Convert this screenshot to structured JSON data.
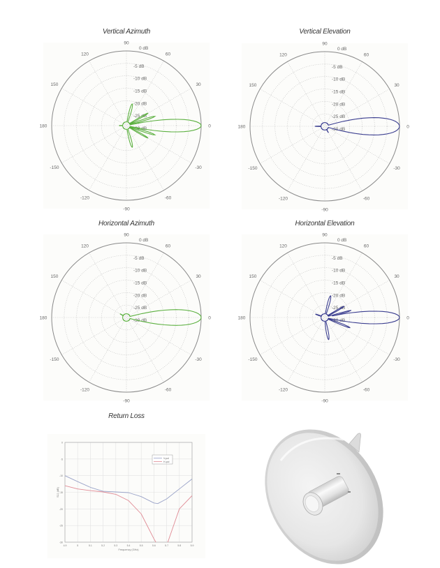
{
  "page": {
    "colors": {
      "green": "#5cb040",
      "navy": "#3a3d8f",
      "vpol": "#9aa3c8",
      "hpol": "#e08a94",
      "grid": "#bdbdbd",
      "circle": "#8a8a8a"
    }
  },
  "chart_data": [
    {
      "type": "polar",
      "title": "Vertical Azimuth",
      "angle_ticks": [
        "0",
        "30",
        "60",
        "90",
        "120",
        "150",
        "180",
        "-150",
        "-120",
        "-90",
        "-60",
        "-30"
      ],
      "radial_ticks": [
        "0 dB",
        "-5 dB",
        "-10 dB",
        "-15 dB",
        "-20 dB",
        "-25 dB",
        "-30 dB"
      ],
      "rlim_db": [
        -30,
        0
      ],
      "series_color": "#5cb040",
      "description": "Main lobe at 0 deg reaching 0 dB, multiple side lobes up to about -22 dB near +/-20, +/-45, +/-80 deg",
      "lobes": [
        {
          "angle": 0,
          "gain_db": 0,
          "width_deg": 8
        },
        {
          "angle": 18,
          "gain_db": -18,
          "width_deg": 4
        },
        {
          "angle": -18,
          "gain_db": -18,
          "width_deg": 4
        },
        {
          "angle": 30,
          "gain_db": -20,
          "width_deg": 4
        },
        {
          "angle": -30,
          "gain_db": -20,
          "width_deg": 4
        },
        {
          "angle": 75,
          "gain_db": -21,
          "width_deg": 8
        },
        {
          "angle": -75,
          "gain_db": -21,
          "width_deg": 8
        },
        {
          "angle": 180,
          "gain_db": -27,
          "width_deg": 6
        }
      ]
    },
    {
      "type": "polar",
      "title": "Vertical Elevation",
      "angle_ticks": [
        "0",
        "30",
        "60",
        "90",
        "120",
        "150",
        "180",
        "-150",
        "-120",
        "-90",
        "-60",
        "-30"
      ],
      "radial_ticks": [
        "0 dB",
        "-5 dB",
        "-10 dB",
        "-15 dB",
        "-20 dB",
        "-25 dB",
        "-30 dB"
      ],
      "rlim_db": [
        -30,
        0
      ],
      "series_color": "#3a3d8f",
      "description": "Single main lobe at 0 deg reaching 0 dB, minimal side lobes",
      "lobes": [
        {
          "angle": 0,
          "gain_db": 0,
          "width_deg": 11
        },
        {
          "angle": -60,
          "gain_db": -27,
          "width_deg": 5
        },
        {
          "angle": 180,
          "gain_db": -26,
          "width_deg": 5
        }
      ]
    },
    {
      "type": "polar",
      "title": "Horizontal Azimuth",
      "angle_ticks": [
        "0",
        "30",
        "60",
        "90",
        "120",
        "150",
        "180",
        "-150",
        "-120",
        "-90",
        "-60",
        "-30"
      ],
      "radial_ticks": [
        "0 dB",
        "-5 dB",
        "-10 dB",
        "-15 dB",
        "-20 dB",
        "-25 dB",
        "-30 dB"
      ],
      "rlim_db": [
        -30,
        0
      ],
      "series_color": "#5cb040",
      "description": "Single main lobe at 0 deg reaching 0 dB, small side lobes near -25 dB",
      "lobes": [
        {
          "angle": 0,
          "gain_db": 0,
          "width_deg": 10
        },
        {
          "angle": 8,
          "gain_db": -20,
          "width_deg": 2
        },
        {
          "angle": 150,
          "gain_db": -27,
          "width_deg": 6
        }
      ]
    },
    {
      "type": "polar",
      "title": "Horizontal Elevation",
      "angle_ticks": [
        "0",
        "30",
        "60",
        "90",
        "120",
        "150",
        "180",
        "-150",
        "-120",
        "-90",
        "-60",
        "-30"
      ],
      "radial_ticks": [
        "0 dB",
        "-5 dB",
        "-10 dB",
        "-15 dB",
        "-20 dB",
        "-25 dB",
        "-30 dB"
      ],
      "rlim_db": [
        -30,
        0
      ],
      "series_color": "#3a3d8f",
      "description": "Main lobe at 0 deg reaching 0 dB, several side lobes up to about -21 dB",
      "lobes": [
        {
          "angle": 0,
          "gain_db": 0,
          "width_deg": 8
        },
        {
          "angle": 15,
          "gain_db": -19,
          "width_deg": 3
        },
        {
          "angle": -22,
          "gain_db": -19,
          "width_deg": 4
        },
        {
          "angle": 30,
          "gain_db": -21,
          "width_deg": 4
        },
        {
          "angle": 75,
          "gain_db": -21,
          "width_deg": 8
        },
        {
          "angle": -80,
          "gain_db": -21,
          "width_deg": 8
        },
        {
          "angle": 160,
          "gain_db": -26,
          "width_deg": 6
        }
      ]
    },
    {
      "type": "line",
      "title": "Return Loss",
      "xlabel": "Frequency (GHz)",
      "ylabel": "S11 (dB)",
      "x": [
        4.9,
        5.0,
        5.1,
        5.2,
        5.3,
        5.4,
        5.5,
        5.6,
        5.63,
        5.7,
        5.8,
        5.9
      ],
      "x_ticks": [
        "4.9",
        "5",
        "5.1",
        "5.2",
        "5.3",
        "5.4",
        "5.5",
        "5.6",
        "5.7",
        "5.8",
        "5.9"
      ],
      "y_ticks": [
        "0",
        "-5",
        "-10",
        "-15",
        "-20",
        "-25",
        "-30"
      ],
      "xlim": [
        4.9,
        5.9
      ],
      "ylim": [
        -30,
        0
      ],
      "grid": true,
      "legend_position": "upper right",
      "series": [
        {
          "name": "V-pol",
          "color": "#9aa3c8",
          "values": [
            -10,
            -11.8,
            -13.5,
            -14.7,
            -14.9,
            -15.1,
            -16.3,
            -18.2,
            -18.4,
            -17,
            -14,
            -11
          ]
        },
        {
          "name": "H-pol",
          "color": "#e08a94",
          "values": [
            -13,
            -14,
            -14.5,
            -14.9,
            -15.6,
            -17.5,
            -21.5,
            -29,
            -31,
            -31,
            -20,
            -16
          ]
        }
      ]
    }
  ],
  "image": {
    "alt": "Parabolic dish antenna product photo"
  }
}
